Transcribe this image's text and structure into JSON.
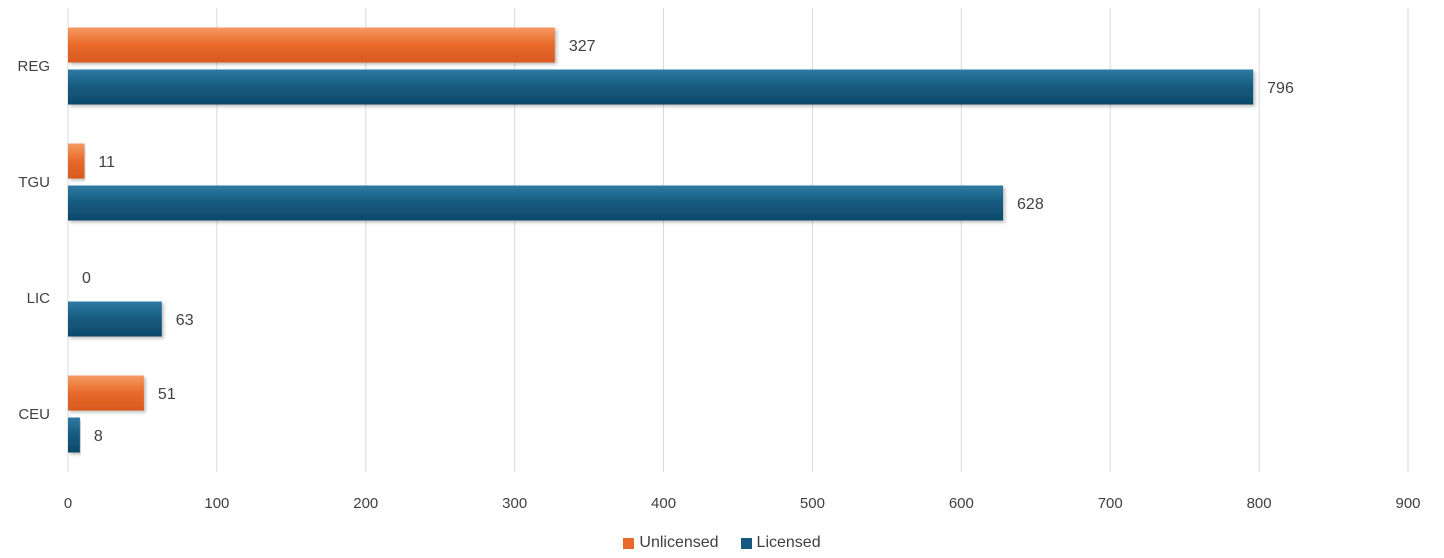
{
  "chart_data": {
    "type": "bar",
    "orientation": "horizontal",
    "categories": [
      "REG",
      "TGU",
      "LIC",
      "CEU"
    ],
    "series": [
      {
        "name": "Unlicensed",
        "values": [
          327,
          11,
          0,
          51
        ],
        "color": "#e8692a"
      },
      {
        "name": "Licensed",
        "values": [
          796,
          628,
          63,
          8
        ],
        "color": "#155a7e"
      }
    ],
    "xlim": [
      0,
      900
    ],
    "xticks": [
      "0",
      "100",
      "200",
      "300",
      "400",
      "500",
      "600",
      "700",
      "800",
      "900"
    ],
    "grid": true,
    "legend_position": "bottom"
  }
}
